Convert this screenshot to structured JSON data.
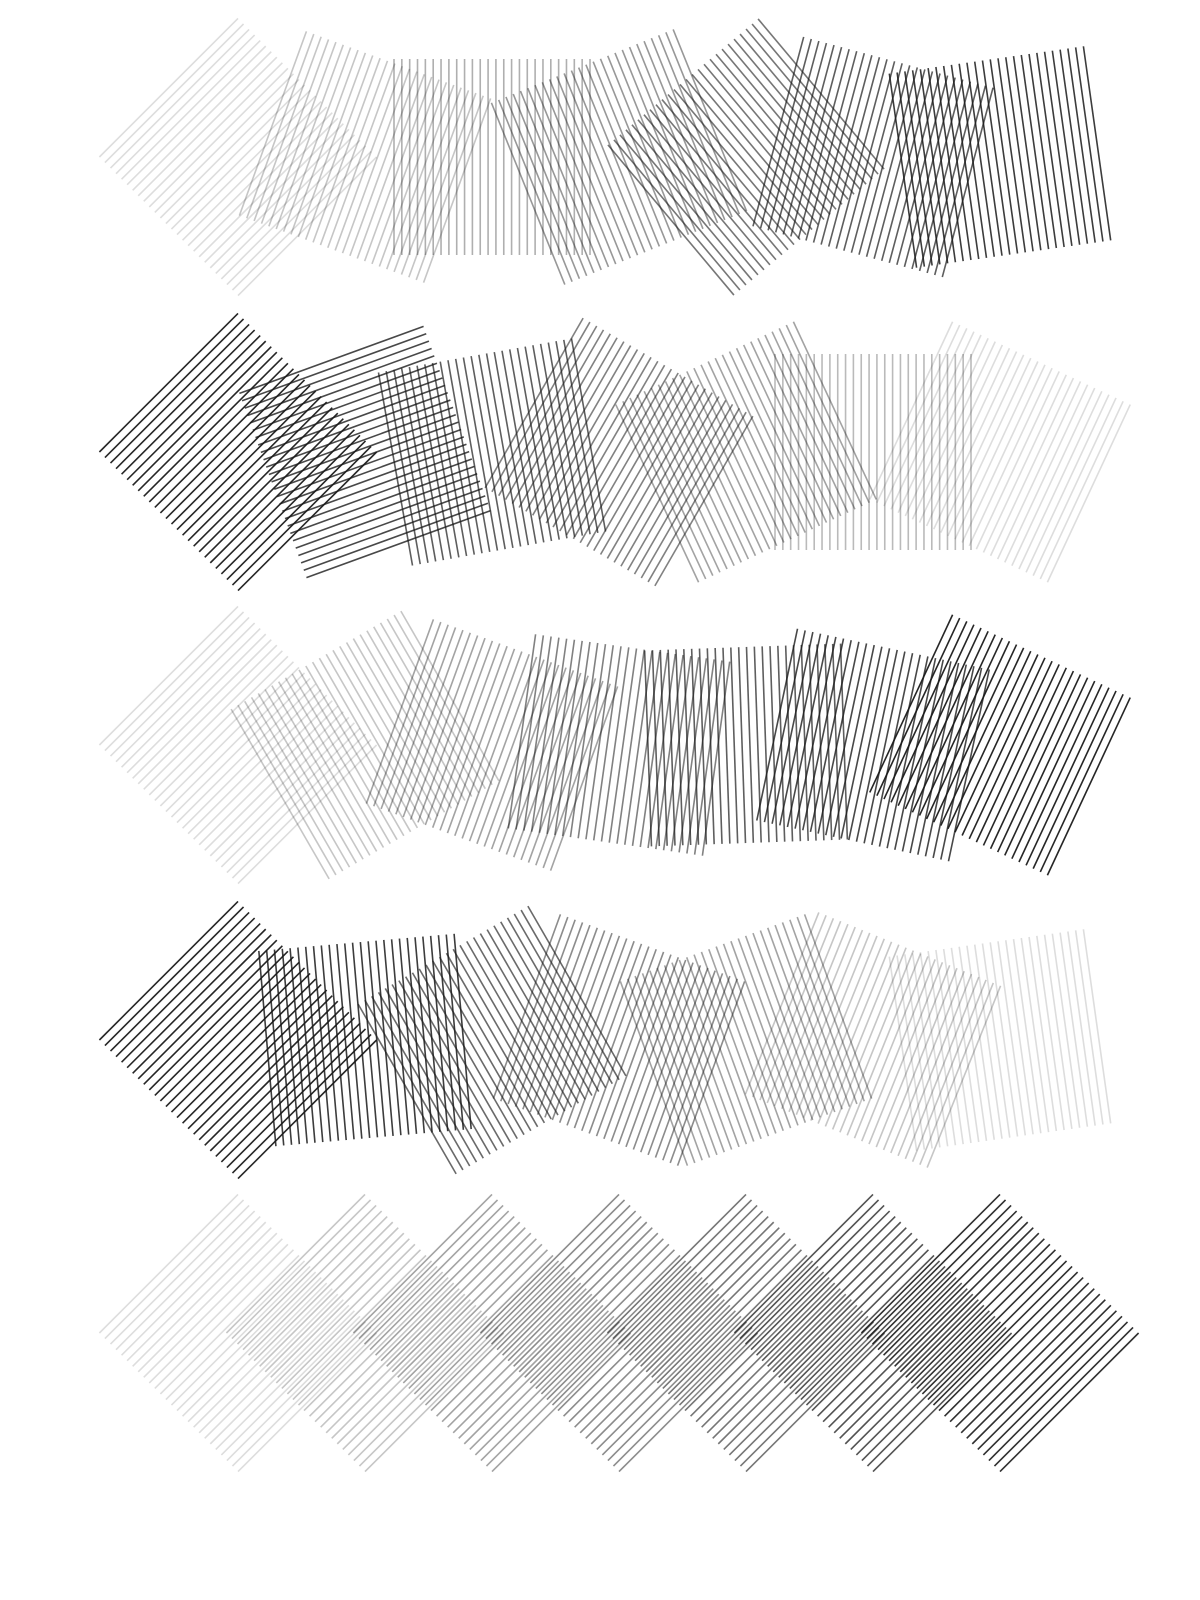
{
  "artwork": {
    "ink_color": "#1a1a1a",
    "background_color": "#ffffff",
    "row_count": 5,
    "squares_per_row": 7,
    "lines_per_square": 26,
    "rows": [
      {
        "name": "row-1",
        "opacities": [
          0.15,
          0.25,
          0.35,
          0.45,
          0.6,
          0.7,
          0.85
        ],
        "rotations": [
          45,
          20,
          0,
          -22,
          -40,
          15,
          -8
        ]
      },
      {
        "name": "row-2",
        "opacities": [
          0.95,
          0.8,
          0.7,
          0.55,
          0.4,
          0.3,
          0.15
        ],
        "rotations": [
          45,
          70,
          -10,
          30,
          -25,
          0,
          25
        ]
      },
      {
        "name": "row-3",
        "opacities": [
          0.15,
          0.25,
          0.4,
          0.55,
          0.7,
          0.8,
          0.95
        ],
        "rotations": [
          45,
          -30,
          20,
          8,
          -2,
          12,
          25
        ]
      },
      {
        "name": "row-4",
        "opacities": [
          0.95,
          0.85,
          0.65,
          0.5,
          0.4,
          0.25,
          0.15
        ],
        "rotations": [
          45,
          -5,
          -30,
          20,
          -20,
          22,
          -8
        ]
      },
      {
        "name": "row-5",
        "opacities": [
          0.15,
          0.25,
          0.4,
          0.5,
          0.6,
          0.75,
          0.9
        ],
        "rotations": [
          45,
          45,
          45,
          45,
          45,
          45,
          45
        ]
      }
    ]
  }
}
